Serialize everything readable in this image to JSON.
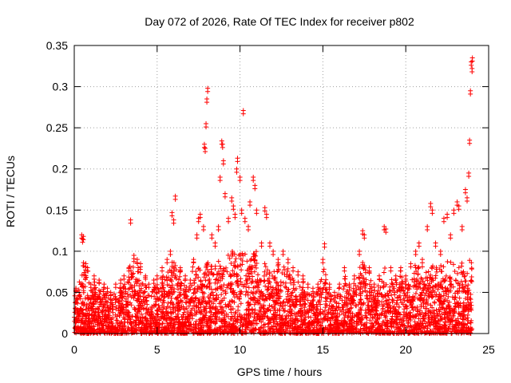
{
  "chart_data": {
    "type": "scatter",
    "title": "Day 072 of 2026, Rate Of TEC Index for receiver p802",
    "xlabel": "GPS time / hours",
    "ylabel": "ROTI / TECUs",
    "xlim": [
      0,
      25
    ],
    "ylim": [
      0,
      0.35
    ],
    "xticks": [
      0,
      5,
      10,
      15,
      20,
      25
    ],
    "xtick_labels": [
      "0",
      "5",
      "10",
      "15",
      "20",
      "25"
    ],
    "yticks": [
      0,
      0.05,
      0.1,
      0.15,
      0.2,
      0.25,
      0.3,
      0.35
    ],
    "ytick_labels": [
      "0",
      "0.05",
      "0.1",
      "0.15",
      "0.2",
      "0.25",
      "0.3",
      "0.35"
    ],
    "grid": true,
    "marker": "+",
    "color": "#ff0000",
    "series": [
      {
        "name": "ROTI",
        "points": [
          [
            0.1,
            0.055
          ],
          [
            0.3,
            0.05
          ],
          [
            0.45,
            0.12
          ],
          [
            0.5,
            0.115
          ],
          [
            0.55,
            0.118
          ],
          [
            0.7,
            0.085
          ],
          [
            0.8,
            0.08
          ],
          [
            1.0,
            0.06
          ],
          [
            1.2,
            0.07
          ],
          [
            1.5,
            0.065
          ],
          [
            1.8,
            0.06
          ],
          [
            2.0,
            0.055
          ],
          [
            2.2,
            0.05
          ],
          [
            2.5,
            0.06
          ],
          [
            2.8,
            0.065
          ],
          [
            3.0,
            0.07
          ],
          [
            3.3,
            0.08
          ],
          [
            3.4,
            0.138
          ],
          [
            3.6,
            0.095
          ],
          [
            3.8,
            0.09
          ],
          [
            4.0,
            0.085
          ],
          [
            4.3,
            0.07
          ],
          [
            4.5,
            0.06
          ],
          [
            4.8,
            0.065
          ],
          [
            5.0,
            0.07
          ],
          [
            5.3,
            0.08
          ],
          [
            5.6,
            0.09
          ],
          [
            5.8,
            0.1
          ],
          [
            5.9,
            0.147
          ],
          [
            6.0,
            0.138
          ],
          [
            6.1,
            0.167
          ],
          [
            6.4,
            0.08
          ],
          [
            6.7,
            0.07
          ],
          [
            7.0,
            0.065
          ],
          [
            7.2,
            0.09
          ],
          [
            7.4,
            0.12
          ],
          [
            7.5,
            0.14
          ],
          [
            7.6,
            0.145
          ],
          [
            7.8,
            0.13
          ],
          [
            7.85,
            0.23
          ],
          [
            7.9,
            0.225
          ],
          [
            7.95,
            0.255
          ],
          [
            8.0,
            0.285
          ],
          [
            8.05,
            0.298
          ],
          [
            8.3,
            0.12
          ],
          [
            8.5,
            0.11
          ],
          [
            8.7,
            0.13
          ],
          [
            8.8,
            0.19
          ],
          [
            8.9,
            0.234
          ],
          [
            8.95,
            0.23
          ],
          [
            9.0,
            0.21
          ],
          [
            9.1,
            0.17
          ],
          [
            9.3,
            0.14
          ],
          [
            9.5,
            0.165
          ],
          [
            9.6,
            0.155
          ],
          [
            9.7,
            0.145
          ],
          [
            9.8,
            0.2
          ],
          [
            9.85,
            0.213
          ],
          [
            10.0,
            0.19
          ],
          [
            10.1,
            0.15
          ],
          [
            10.2,
            0.271
          ],
          [
            10.3,
            0.14
          ],
          [
            10.5,
            0.13
          ],
          [
            10.6,
            0.16
          ],
          [
            10.8,
            0.19
          ],
          [
            10.9,
            0.18
          ],
          [
            11.0,
            0.15
          ],
          [
            11.3,
            0.11
          ],
          [
            11.5,
            0.153
          ],
          [
            11.6,
            0.145
          ],
          [
            11.8,
            0.11
          ],
          [
            12.0,
            0.1
          ],
          [
            12.3,
            0.09
          ],
          [
            12.6,
            0.1
          ],
          [
            12.9,
            0.09
          ],
          [
            13.2,
            0.08
          ],
          [
            13.5,
            0.075
          ],
          [
            13.8,
            0.07
          ],
          [
            14.1,
            0.06
          ],
          [
            14.4,
            0.055
          ],
          [
            14.7,
            0.06
          ],
          [
            15.0,
            0.09
          ],
          [
            15.1,
            0.109
          ],
          [
            15.4,
            0.06
          ],
          [
            15.7,
            0.05
          ],
          [
            16.0,
            0.06
          ],
          [
            16.3,
            0.08
          ],
          [
            16.6,
            0.06
          ],
          [
            16.9,
            0.07
          ],
          [
            17.2,
            0.1
          ],
          [
            17.4,
            0.125
          ],
          [
            17.5,
            0.12
          ],
          [
            17.8,
            0.08
          ],
          [
            18.1,
            0.06
          ],
          [
            18.4,
            0.07
          ],
          [
            18.7,
            0.13
          ],
          [
            18.8,
            0.127
          ],
          [
            19.1,
            0.08
          ],
          [
            19.4,
            0.07
          ],
          [
            19.7,
            0.08
          ],
          [
            20.0,
            0.07
          ],
          [
            20.3,
            0.085
          ],
          [
            20.6,
            0.1
          ],
          [
            20.8,
            0.11
          ],
          [
            21.0,
            0.09
          ],
          [
            21.3,
            0.13
          ],
          [
            21.5,
            0.158
          ],
          [
            21.6,
            0.15
          ],
          [
            21.8,
            0.11
          ],
          [
            22.1,
            0.1
          ],
          [
            22.3,
            0.14
          ],
          [
            22.5,
            0.145
          ],
          [
            22.7,
            0.12
          ],
          [
            22.9,
            0.15
          ],
          [
            23.1,
            0.16
          ],
          [
            23.2,
            0.155
          ],
          [
            23.4,
            0.13
          ],
          [
            23.6,
            0.175
          ],
          [
            23.7,
            0.165
          ],
          [
            23.8,
            0.195
          ],
          [
            23.85,
            0.235
          ],
          [
            23.9,
            0.295
          ],
          [
            23.95,
            0.33
          ],
          [
            24.0,
            0.322
          ],
          [
            24.02,
            0.335
          ]
        ]
      }
    ]
  }
}
